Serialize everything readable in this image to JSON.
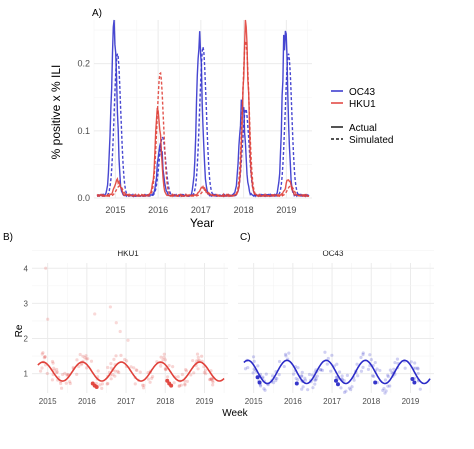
{
  "chart_data": [
    {
      "panel": "A)",
      "type": "line",
      "xlabel": "Year",
      "ylabel": "% positive x % ILI",
      "x_ticks": [
        "2015",
        "2016",
        "2017",
        "2018",
        "2019"
      ],
      "y_ticks": [
        "0.0",
        "0.1",
        "0.2"
      ],
      "ylim": [
        0,
        0.265
      ],
      "xlim": [
        2014.5,
        2019.6
      ],
      "grid": true,
      "legend_position": "right",
      "legend_virus": [
        {
          "name": "OC43",
          "color": "#3333cc"
        },
        {
          "name": "HKU1",
          "color": "#e0413a"
        }
      ],
      "legend_kind": [
        {
          "name": "Actual",
          "style": "solid"
        },
        {
          "name": "Simulated",
          "style": "dashed"
        }
      ],
      "series": [
        {
          "virus": "OC43",
          "kind": "Actual",
          "color": "#3333cc",
          "peaks": [
            {
              "x": 2014.97,
              "y": 0.26
            },
            {
              "x": 2016.05,
              "y": 0.073
            },
            {
              "x": 2016.97,
              "y": 0.232
            },
            {
              "x": 2017.97,
              "y": 0.145
            },
            {
              "x": 2018.97,
              "y": 0.245
            }
          ],
          "baseline": 0.004
        },
        {
          "virus": "OC43",
          "kind": "Simulated",
          "color": "#3333cc",
          "peaks": [
            {
              "x": 2015.05,
              "y": 0.212
            },
            {
              "x": 2016.1,
              "y": 0.088
            },
            {
              "x": 2017.05,
              "y": 0.222
            },
            {
              "x": 2018.05,
              "y": 0.13
            },
            {
              "x": 2019.05,
              "y": 0.212
            }
          ],
          "baseline": 0.003
        },
        {
          "virus": "HKU1",
          "kind": "Actual",
          "color": "#e0413a",
          "peaks": [
            {
              "x": 2015.05,
              "y": 0.022
            },
            {
              "x": 2016.0,
              "y": 0.125
            },
            {
              "x": 2017.05,
              "y": 0.012
            },
            {
              "x": 2018.05,
              "y": 0.242
            },
            {
              "x": 2019.05,
              "y": 0.022
            }
          ],
          "baseline": 0.004
        },
        {
          "virus": "HKU1",
          "kind": "Simulated",
          "color": "#e0413a",
          "peaks": [
            {
              "x": 2015.1,
              "y": 0.015
            },
            {
              "x": 2016.05,
              "y": 0.184
            },
            {
              "x": 2017.1,
              "y": 0.009
            },
            {
              "x": 2018.05,
              "y": 0.232
            },
            {
              "x": 2019.1,
              "y": 0.015
            }
          ],
          "baseline": 0.003
        }
      ]
    },
    {
      "panel": "B)",
      "type": "scatter",
      "strip": "HKU1",
      "ylabel": "Re",
      "y_ticks": [
        "1",
        "2",
        "3",
        "4"
      ],
      "x_ticks": [
        "2015",
        "2016",
        "2017",
        "2018",
        "2019"
      ],
      "ylim": [
        0.45,
        4.15
      ],
      "xlim": [
        2014.6,
        2019.6
      ],
      "color": "#e0413a",
      "fit": {
        "amp": 0.27,
        "mean": 1.06,
        "peak_phase": 0.88
      },
      "outliers": [
        {
          "x": 2014.95,
          "y": 4.0
        },
        {
          "x": 2015.0,
          "y": 2.55
        },
        {
          "x": 2016.6,
          "y": 2.9
        },
        {
          "x": 2016.75,
          "y": 2.45
        },
        {
          "x": 2016.2,
          "y": 2.7
        },
        {
          "x": 2016.85,
          "y": 2.2
        },
        {
          "x": 2017.05,
          "y": 1.95
        }
      ],
      "solid_points": [
        {
          "x": 2016.15,
          "y": 0.72
        },
        {
          "x": 2016.2,
          "y": 0.66
        },
        {
          "x": 2016.25,
          "y": 0.62
        },
        {
          "x": 2018.05,
          "y": 0.8
        },
        {
          "x": 2018.1,
          "y": 0.72
        },
        {
          "x": 2018.15,
          "y": 0.66
        }
      ]
    },
    {
      "panel": "C)",
      "type": "scatter",
      "strip": "OC43",
      "x_ticks": [
        "2015",
        "2016",
        "2017",
        "2018",
        "2019"
      ],
      "ylim": [
        0.45,
        4.15
      ],
      "xlim": [
        2014.6,
        2019.6
      ],
      "color": "#2b2bc7",
      "fit": {
        "amp": 0.33,
        "mean": 1.05,
        "peak_phase": 0.85
      },
      "solid_points": [
        {
          "x": 2015.1,
          "y": 0.9
        },
        {
          "x": 2015.15,
          "y": 0.75
        },
        {
          "x": 2016.1,
          "y": 0.72
        },
        {
          "x": 2017.1,
          "y": 0.8
        },
        {
          "x": 2017.15,
          "y": 0.7
        },
        {
          "x": 2018.1,
          "y": 0.75
        },
        {
          "x": 2019.05,
          "y": 0.85
        },
        {
          "x": 2019.1,
          "y": 0.75
        }
      ]
    }
  ],
  "shared_xlabel": "Week"
}
